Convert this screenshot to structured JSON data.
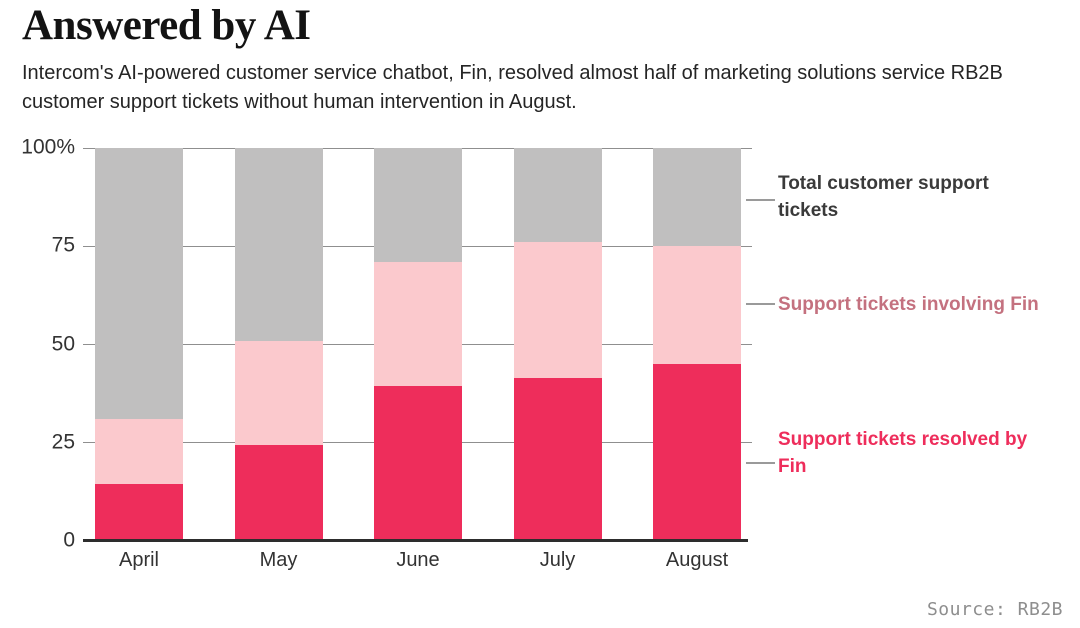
{
  "header": {
    "title": "Answered by AI",
    "subtitle": "Intercom's AI-powered customer service chatbot, Fin, resolved almost half of marketing solutions service RB2B customer support tickets without human intervention in August."
  },
  "chart_data": {
    "type": "bar",
    "variant": "stacked-100-percent",
    "title": "Answered by AI",
    "categories": [
      "April",
      "May",
      "June",
      "July",
      "August"
    ],
    "series": [
      {
        "key": "resolved",
        "name": "Support tickets resolved by Fin",
        "color": "#ee2d5b",
        "values": [
          14.5,
          24.5,
          39.5,
          41.5,
          45
        ]
      },
      {
        "key": "involving",
        "name": "Support tickets involving Fin",
        "color": "#fbc9cd",
        "values": [
          16.5,
          26.5,
          31.5,
          34.5,
          30
        ]
      },
      {
        "key": "total",
        "name": "Total customer support tickets",
        "color": "#c0bfbf",
        "values": [
          69,
          49,
          29,
          24,
          25
        ]
      }
    ],
    "cumulative_tops": {
      "resolved": [
        14.5,
        24.5,
        39.5,
        41.5,
        45
      ],
      "involving": [
        31,
        51,
        71,
        76,
        75
      ],
      "total": [
        100,
        100,
        100,
        100,
        100
      ]
    },
    "xlabel": "",
    "ylabel": "",
    "yticks": [
      "100%",
      "75",
      "50",
      "25",
      "0"
    ],
    "ylim": [
      0,
      100
    ],
    "grid": "horizontal",
    "legend_position": "right"
  },
  "legend": {
    "items": [
      {
        "label": "Total customer support tickets",
        "color": "#3a3a3a"
      },
      {
        "label": "Support tickets involving Fin",
        "color": "#c4717f"
      },
      {
        "label": "Support tickets resolved by Fin",
        "color": "#ee2d5b"
      }
    ]
  },
  "footer": {
    "source": "Source: RB2B"
  }
}
